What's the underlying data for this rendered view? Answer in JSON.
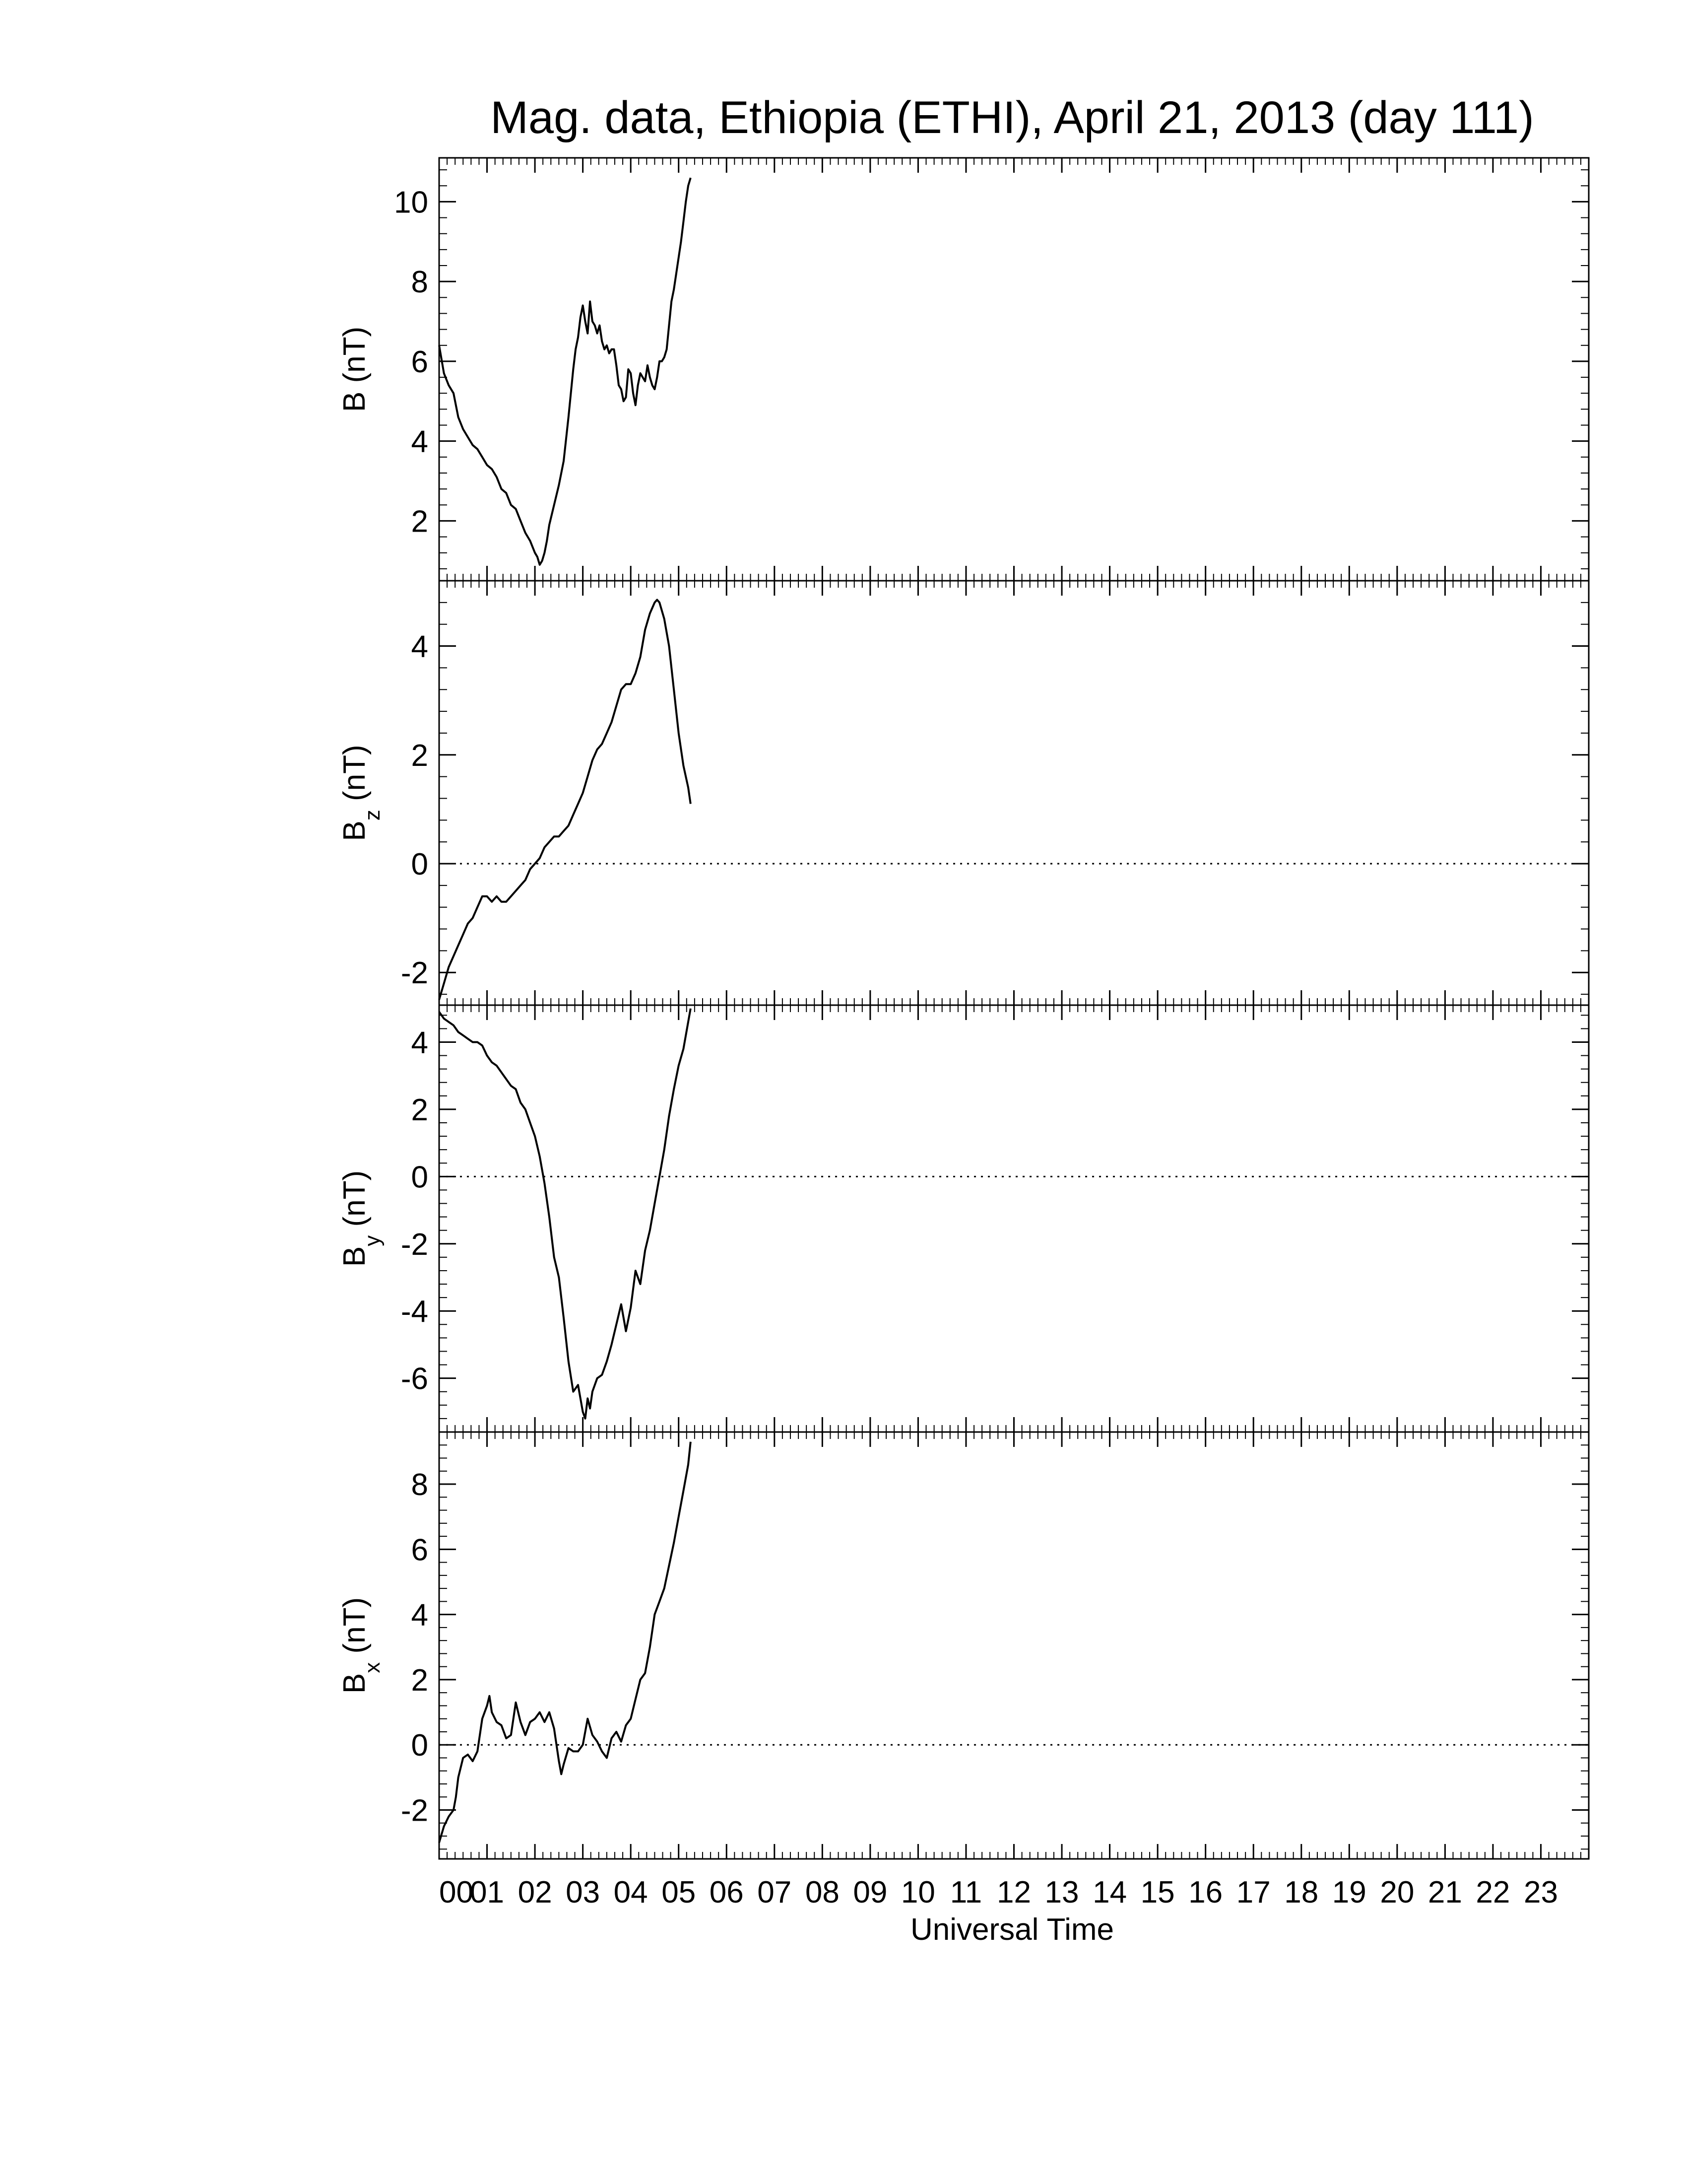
{
  "figure": {
    "title": "Mag. data, Ethiopia (ETHI), April 21, 2013 (day 111)",
    "xlabel": "Universal Time"
  },
  "chart_data": [
    {
      "type": "line",
      "panel": "B",
      "ylabel": "B (nT)",
      "ylabel_main": "B",
      "ylabel_sub": "",
      "ylabel_units": " (nT)",
      "ylim": [
        0.5,
        11.1
      ],
      "yticks": [
        2,
        4,
        6,
        8,
        10
      ],
      "ytick_labels": [
        "2",
        "4",
        "6",
        "8",
        "10"
      ],
      "xlim": [
        0,
        24
      ],
      "zero_line": false,
      "x": [
        0.0,
        0.1,
        0.2,
        0.3,
        0.4,
        0.5,
        0.6,
        0.7,
        0.8,
        0.9,
        1.0,
        1.1,
        1.2,
        1.3,
        1.4,
        1.5,
        1.6,
        1.7,
        1.8,
        1.9,
        2.0,
        2.05,
        2.1,
        2.15,
        2.2,
        2.25,
        2.3,
        2.4,
        2.5,
        2.6,
        2.7,
        2.8,
        2.85,
        2.9,
        2.95,
        3.0,
        3.05,
        3.1,
        3.15,
        3.2,
        3.25,
        3.3,
        3.35,
        3.4,
        3.45,
        3.5,
        3.55,
        3.6,
        3.65,
        3.7,
        3.75,
        3.8,
        3.85,
        3.9,
        3.95,
        4.0,
        4.05,
        4.1,
        4.15,
        4.2,
        4.25,
        4.3,
        4.35,
        4.4,
        4.45,
        4.5,
        4.55,
        4.6,
        4.65,
        4.7,
        4.75,
        4.8,
        4.85,
        4.9,
        4.95,
        5.0,
        5.05,
        5.1,
        5.15,
        5.2,
        5.25
      ],
      "y": [
        6.4,
        5.7,
        5.4,
        5.2,
        4.6,
        4.3,
        4.1,
        3.9,
        3.8,
        3.6,
        3.4,
        3.3,
        3.1,
        2.8,
        2.7,
        2.4,
        2.3,
        2.0,
        1.7,
        1.5,
        1.2,
        1.1,
        0.9,
        1.0,
        1.2,
        1.5,
        1.9,
        2.4,
        2.9,
        3.5,
        4.6,
        5.8,
        6.3,
        6.6,
        7.1,
        7.4,
        7.0,
        6.7,
        7.5,
        7.0,
        6.9,
        6.7,
        6.9,
        6.5,
        6.3,
        6.4,
        6.2,
        6.3,
        6.3,
        5.9,
        5.4,
        5.3,
        5.0,
        5.1,
        5.8,
        5.7,
        5.2,
        4.9,
        5.4,
        5.7,
        5.6,
        5.5,
        5.9,
        5.6,
        5.4,
        5.3,
        5.6,
        6.0,
        6.0,
        6.1,
        6.3,
        6.9,
        7.5,
        7.8,
        8.2,
        8.6,
        9.0,
        9.5,
        10.0,
        10.4,
        10.6
      ]
    },
    {
      "type": "line",
      "panel": "Bz",
      "ylabel": "Bz (nT)",
      "ylabel_main": "B",
      "ylabel_sub": "z",
      "ylabel_units": " (nT)",
      "ylim": [
        -2.6,
        5.2
      ],
      "yticks": [
        -2,
        0,
        2,
        4
      ],
      "ytick_labels": [
        "-2",
        "0",
        "2",
        "4"
      ],
      "xlim": [
        0,
        24
      ],
      "zero_line": true,
      "x": [
        0.0,
        0.1,
        0.2,
        0.3,
        0.4,
        0.5,
        0.6,
        0.7,
        0.8,
        0.9,
        1.0,
        1.1,
        1.2,
        1.3,
        1.4,
        1.5,
        1.6,
        1.7,
        1.8,
        1.9,
        2.0,
        2.1,
        2.2,
        2.3,
        2.4,
        2.5,
        2.6,
        2.7,
        2.8,
        2.9,
        3.0,
        3.1,
        3.2,
        3.3,
        3.4,
        3.5,
        3.6,
        3.7,
        3.8,
        3.9,
        4.0,
        4.1,
        4.2,
        4.3,
        4.4,
        4.5,
        4.55,
        4.6,
        4.7,
        4.8,
        4.9,
        5.0,
        5.1,
        5.2,
        5.25
      ],
      "y": [
        -2.5,
        -2.2,
        -1.9,
        -1.7,
        -1.5,
        -1.3,
        -1.1,
        -1.0,
        -0.8,
        -0.6,
        -0.6,
        -0.7,
        -0.6,
        -0.7,
        -0.7,
        -0.6,
        -0.5,
        -0.4,
        -0.3,
        -0.1,
        0.0,
        0.1,
        0.3,
        0.4,
        0.5,
        0.5,
        0.6,
        0.7,
        0.9,
        1.1,
        1.3,
        1.6,
        1.9,
        2.1,
        2.2,
        2.4,
        2.6,
        2.9,
        3.2,
        3.3,
        3.3,
        3.5,
        3.8,
        4.3,
        4.6,
        4.8,
        4.85,
        4.8,
        4.5,
        4.0,
        3.2,
        2.4,
        1.8,
        1.4,
        1.1
      ]
    },
    {
      "type": "line",
      "panel": "By",
      "ylabel": "By (nT)",
      "ylabel_main": "B",
      "ylabel_sub": "y",
      "ylabel_units": " (nT)",
      "ylim": [
        -7.6,
        5.1
      ],
      "yticks": [
        -6,
        -4,
        -2,
        0,
        2,
        4
      ],
      "ytick_labels": [
        "-6",
        "-4",
        "-2",
        "0",
        "2",
        "4"
      ],
      "xlim": [
        0,
        24
      ],
      "zero_line": true,
      "x": [
        0.0,
        0.1,
        0.2,
        0.3,
        0.4,
        0.5,
        0.6,
        0.7,
        0.8,
        0.9,
        1.0,
        1.1,
        1.2,
        1.3,
        1.4,
        1.5,
        1.6,
        1.7,
        1.8,
        1.9,
        2.0,
        2.1,
        2.2,
        2.3,
        2.4,
        2.5,
        2.6,
        2.7,
        2.8,
        2.9,
        3.0,
        3.05,
        3.1,
        3.15,
        3.2,
        3.3,
        3.4,
        3.5,
        3.6,
        3.7,
        3.8,
        3.9,
        4.0,
        4.1,
        4.2,
        4.3,
        4.4,
        4.5,
        4.6,
        4.7,
        4.8,
        4.9,
        5.0,
        5.1,
        5.2,
        5.25
      ],
      "y": [
        4.9,
        4.7,
        4.6,
        4.5,
        4.3,
        4.2,
        4.1,
        4.0,
        4.0,
        3.9,
        3.6,
        3.4,
        3.3,
        3.1,
        2.9,
        2.7,
        2.6,
        2.2,
        2.0,
        1.6,
        1.2,
        0.6,
        -0.2,
        -1.2,
        -2.4,
        -3.0,
        -4.2,
        -5.5,
        -6.4,
        -6.2,
        -7.0,
        -7.2,
        -6.6,
        -6.9,
        -6.4,
        -6.0,
        -5.9,
        -5.5,
        -5.0,
        -4.4,
        -3.8,
        -4.6,
        -3.9,
        -2.8,
        -3.2,
        -2.2,
        -1.6,
        -0.8,
        0.0,
        0.8,
        1.8,
        2.6,
        3.3,
        3.8,
        4.6,
        5.0
      ]
    },
    {
      "type": "line",
      "panel": "Bx",
      "ylabel": "Bx (nT)",
      "ylabel_main": "B",
      "ylabel_sub": "x",
      "ylabel_units": " (nT)",
      "ylim": [
        -3.5,
        9.6
      ],
      "yticks": [
        -2,
        0,
        2,
        4,
        6,
        8
      ],
      "ytick_labels": [
        "-2",
        "0",
        "2",
        "4",
        "6",
        "8"
      ],
      "xlim": [
        0,
        24
      ],
      "zero_line": true,
      "x": [
        0.0,
        0.1,
        0.2,
        0.3,
        0.35,
        0.4,
        0.5,
        0.6,
        0.7,
        0.8,
        0.9,
        1.0,
        1.05,
        1.1,
        1.2,
        1.3,
        1.4,
        1.5,
        1.6,
        1.7,
        1.8,
        1.9,
        2.0,
        2.1,
        2.2,
        2.3,
        2.4,
        2.5,
        2.55,
        2.6,
        2.7,
        2.8,
        2.9,
        3.0,
        3.1,
        3.2,
        3.3,
        3.4,
        3.5,
        3.6,
        3.7,
        3.8,
        3.9,
        4.0,
        4.1,
        4.2,
        4.3,
        4.4,
        4.5,
        4.6,
        4.7,
        4.8,
        4.9,
        5.0,
        5.1,
        5.2,
        5.25
      ],
      "y": [
        -3.0,
        -2.5,
        -2.2,
        -2.0,
        -1.6,
        -1.0,
        -0.4,
        -0.3,
        -0.5,
        -0.2,
        0.8,
        1.2,
        1.5,
        1.0,
        0.7,
        0.6,
        0.2,
        0.3,
        1.3,
        0.7,
        0.3,
        0.7,
        0.8,
        1.0,
        0.7,
        1.0,
        0.5,
        -0.5,
        -0.9,
        -0.6,
        -0.1,
        -0.2,
        -0.2,
        0.0,
        0.8,
        0.3,
        0.1,
        -0.2,
        -0.4,
        0.2,
        0.4,
        0.1,
        0.6,
        0.8,
        1.4,
        2.0,
        2.2,
        3.0,
        4.0,
        4.4,
        4.8,
        5.5,
        6.2,
        7.0,
        7.8,
        8.6,
        9.3
      ]
    }
  ],
  "xaxis": {
    "tick_labels": [
      "00",
      "01",
      "02",
      "03",
      "04",
      "05",
      "06",
      "07",
      "08",
      "09",
      "10",
      "11",
      "12",
      "13",
      "14",
      "15",
      "16",
      "17",
      "18",
      "19",
      "20",
      "21",
      "22",
      "23"
    ]
  }
}
